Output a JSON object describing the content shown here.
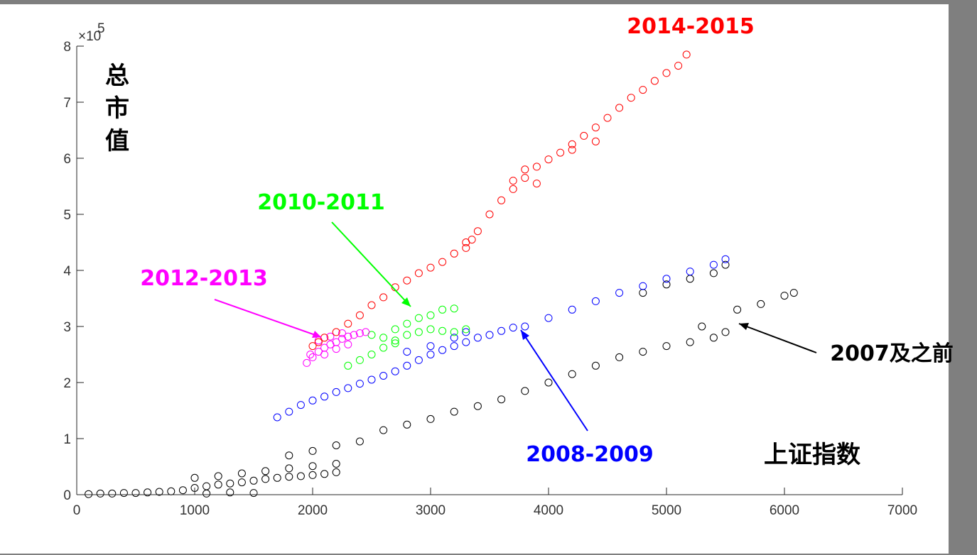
{
  "chart_data": {
    "type": "scatter",
    "title": "",
    "xlabel": "上证指数",
    "ylabel": "总市值",
    "xlim": [
      0,
      7000
    ],
    "ylim": [
      0,
      800000
    ],
    "x_ticks": [
      0,
      1000,
      2000,
      3000,
      4000,
      5000,
      6000,
      7000
    ],
    "x_tick_labels": [
      "0",
      "1000",
      "2000",
      "3000",
      "4000",
      "5000",
      "6000",
      "7000"
    ],
    "y_ticks": [
      0,
      100000,
      200000,
      300000,
      400000,
      500000,
      600000,
      700000,
      800000
    ],
    "y_tick_labels": [
      "0",
      "1",
      "2",
      "3",
      "4",
      "5",
      "6",
      "7",
      "8"
    ],
    "y_exponent_label": "×10",
    "y_exponent_power": "5",
    "grid": false,
    "marker": "open-circle",
    "series": [
      {
        "name": "2007及之前",
        "color": "#000000",
        "points": [
          [
            100,
            1000
          ],
          [
            200,
            2000
          ],
          [
            300,
            2000
          ],
          [
            400,
            3000
          ],
          [
            500,
            3000
          ],
          [
            600,
            4000
          ],
          [
            700,
            5000
          ],
          [
            800,
            6000
          ],
          [
            900,
            8000
          ],
          [
            1000,
            12000
          ],
          [
            1100,
            15000
          ],
          [
            1200,
            18000
          ],
          [
            1300,
            20000
          ],
          [
            1400,
            22000
          ],
          [
            1500,
            25000
          ],
          [
            1600,
            28000
          ],
          [
            1700,
            30000
          ],
          [
            1800,
            32000
          ],
          [
            1900,
            33000
          ],
          [
            2000,
            35000
          ],
          [
            2100,
            37000
          ],
          [
            2200,
            40000
          ],
          [
            1000,
            30000
          ],
          [
            1200,
            33000
          ],
          [
            1400,
            38000
          ],
          [
            1600,
            42000
          ],
          [
            1800,
            47000
          ],
          [
            2000,
            51000
          ],
          [
            2200,
            55000
          ],
          [
            1100,
            2000
          ],
          [
            1300,
            4000
          ],
          [
            1500,
            3000
          ],
          [
            1800,
            70000
          ],
          [
            2000,
            78000
          ],
          [
            2200,
            88000
          ],
          [
            2400,
            95000
          ],
          [
            2600,
            115000
          ],
          [
            2800,
            125000
          ],
          [
            3000,
            135000
          ],
          [
            3200,
            148000
          ],
          [
            3400,
            158000
          ],
          [
            3600,
            170000
          ],
          [
            3800,
            185000
          ],
          [
            4000,
            200000
          ],
          [
            4200,
            215000
          ],
          [
            4400,
            230000
          ],
          [
            4600,
            245000
          ],
          [
            4800,
            255000
          ],
          [
            5000,
            265000
          ],
          [
            5200,
            272000
          ],
          [
            5400,
            280000
          ],
          [
            5500,
            290000
          ],
          [
            5600,
            330000
          ],
          [
            5800,
            340000
          ],
          [
            6000,
            355000
          ],
          [
            6080,
            360000
          ],
          [
            5300,
            300000
          ],
          [
            5500,
            410000
          ],
          [
            4800,
            360000
          ],
          [
            5000,
            375000
          ],
          [
            5200,
            385000
          ],
          [
            5400,
            395000
          ]
        ]
      },
      {
        "name": "2008-2009",
        "color": "#0000ff",
        "points": [
          [
            1700,
            138000
          ],
          [
            1800,
            148000
          ],
          [
            1900,
            160000
          ],
          [
            2000,
            168000
          ],
          [
            2100,
            175000
          ],
          [
            2200,
            183000
          ],
          [
            2300,
            190000
          ],
          [
            2400,
            198000
          ],
          [
            2500,
            205000
          ],
          [
            2600,
            212000
          ],
          [
            2700,
            220000
          ],
          [
            2800,
            230000
          ],
          [
            2900,
            240000
          ],
          [
            3000,
            250000
          ],
          [
            3100,
            258000
          ],
          [
            3200,
            265000
          ],
          [
            3300,
            272000
          ],
          [
            3400,
            280000
          ],
          [
            3500,
            285000
          ],
          [
            3600,
            292000
          ],
          [
            3700,
            298000
          ],
          [
            3800,
            300000
          ],
          [
            4000,
            315000
          ],
          [
            4200,
            330000
          ],
          [
            4400,
            345000
          ],
          [
            4600,
            360000
          ],
          [
            4800,
            372000
          ],
          [
            5000,
            385000
          ],
          [
            5200,
            398000
          ],
          [
            5400,
            410000
          ],
          [
            5500,
            420000
          ],
          [
            2800,
            255000
          ],
          [
            3000,
            265000
          ],
          [
            3200,
            280000
          ],
          [
            3300,
            290000
          ]
        ]
      },
      {
        "name": "2010-2011",
        "color": "#00ff00",
        "points": [
          [
            2300,
            230000
          ],
          [
            2400,
            240000
          ],
          [
            2500,
            250000
          ],
          [
            2600,
            262000
          ],
          [
            2700,
            275000
          ],
          [
            2800,
            285000
          ],
          [
            2900,
            290000
          ],
          [
            3000,
            295000
          ],
          [
            3100,
            292000
          ],
          [
            3200,
            290000
          ],
          [
            3300,
            295000
          ],
          [
            2600,
            280000
          ],
          [
            2700,
            295000
          ],
          [
            2800,
            305000
          ],
          [
            2900,
            315000
          ],
          [
            3000,
            320000
          ],
          [
            3100,
            330000
          ],
          [
            3200,
            332000
          ],
          [
            2500,
            285000
          ],
          [
            2700,
            270000
          ]
        ]
      },
      {
        "name": "2012-2013",
        "color": "#ff00ff",
        "points": [
          [
            1950,
            235000
          ],
          [
            2000,
            245000
          ],
          [
            2050,
            255000
          ],
          [
            2100,
            262000
          ],
          [
            2150,
            268000
          ],
          [
            2200,
            272000
          ],
          [
            2250,
            278000
          ],
          [
            2300,
            282000
          ],
          [
            2350,
            285000
          ],
          [
            2400,
            288000
          ],
          [
            2450,
            290000
          ],
          [
            2050,
            275000
          ],
          [
            2150,
            282000
          ],
          [
            2250,
            288000
          ],
          [
            1980,
            250000
          ],
          [
            2100,
            250000
          ],
          [
            2200,
            260000
          ],
          [
            2300,
            268000
          ]
        ]
      },
      {
        "name": "2014-2015",
        "color": "#ff0000",
        "points": [
          [
            2000,
            265000
          ],
          [
            2050,
            272000
          ],
          [
            2100,
            280000
          ],
          [
            2200,
            290000
          ],
          [
            2300,
            305000
          ],
          [
            2400,
            320000
          ],
          [
            2500,
            338000
          ],
          [
            2600,
            352000
          ],
          [
            2700,
            370000
          ],
          [
            2800,
            382000
          ],
          [
            2900,
            395000
          ],
          [
            3000,
            405000
          ],
          [
            3100,
            415000
          ],
          [
            3200,
            430000
          ],
          [
            3300,
            450000
          ],
          [
            3400,
            470000
          ],
          [
            3500,
            500000
          ],
          [
            3600,
            525000
          ],
          [
            3700,
            545000
          ],
          [
            3800,
            565000
          ],
          [
            3900,
            585000
          ],
          [
            4000,
            598000
          ],
          [
            4100,
            610000
          ],
          [
            4200,
            625000
          ],
          [
            4300,
            640000
          ],
          [
            4400,
            655000
          ],
          [
            4500,
            672000
          ],
          [
            4600,
            690000
          ],
          [
            4700,
            708000
          ],
          [
            4800,
            722000
          ],
          [
            4900,
            738000
          ],
          [
            5000,
            752000
          ],
          [
            5100,
            765000
          ],
          [
            5170,
            785000
          ],
          [
            3700,
            560000
          ],
          [
            3800,
            580000
          ],
          [
            3900,
            555000
          ],
          [
            4200,
            615000
          ],
          [
            4400,
            630000
          ],
          [
            3300,
            440000
          ],
          [
            3350,
            455000
          ]
        ]
      }
    ],
    "annotations": [
      {
        "text": "2014-2015",
        "color": "#ff0000"
      },
      {
        "text": "2010-2011",
        "color": "#00ff00"
      },
      {
        "text": "2012-2013",
        "color": "#ff00ff"
      },
      {
        "text": "2008-2009",
        "color": "#0000ff"
      },
      {
        "text": "2007及之前",
        "color": "#000000"
      }
    ]
  }
}
